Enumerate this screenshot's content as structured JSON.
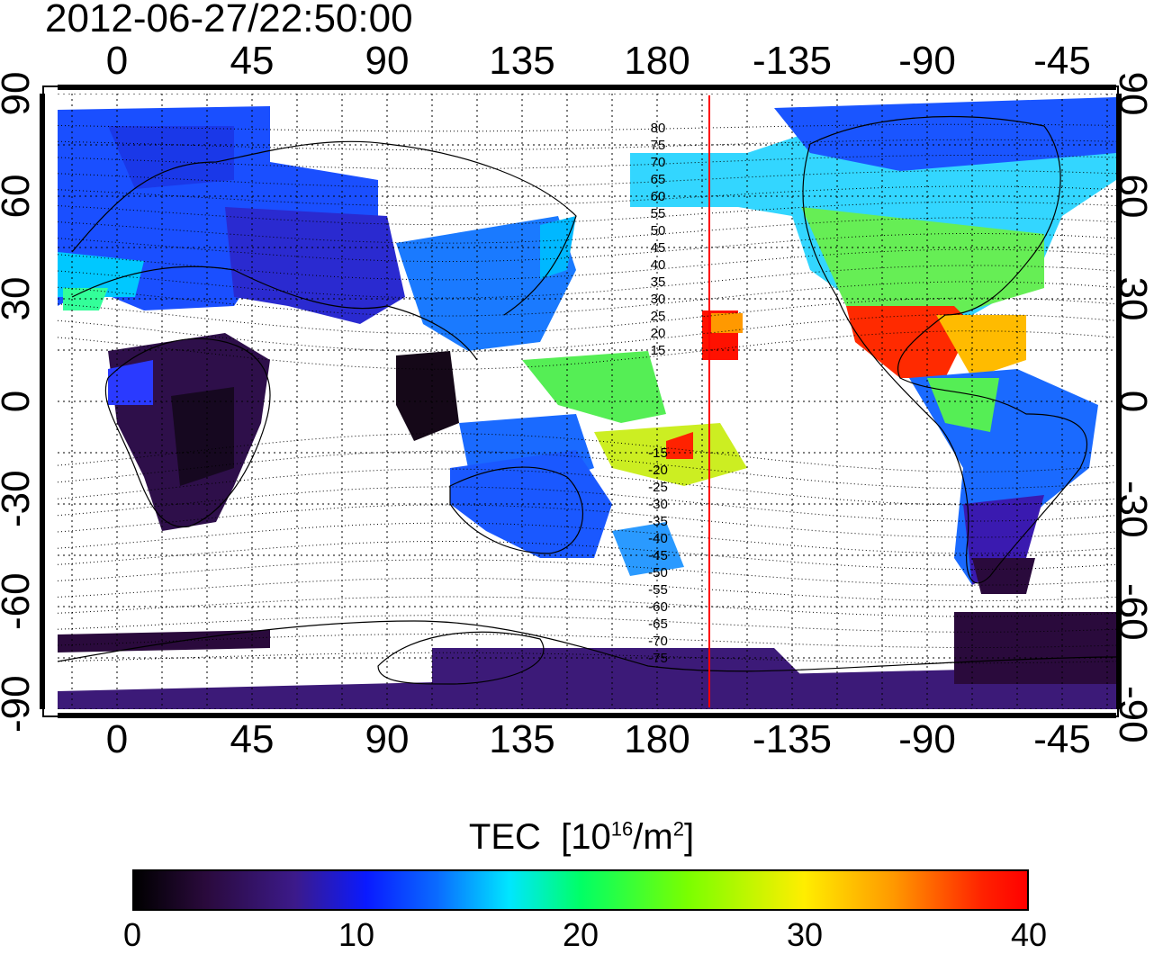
{
  "timestamp": "2012-06-27/22:50:00",
  "lon_ticks": [
    "0",
    "45",
    "90",
    "135",
    "180",
    "-135",
    "-90",
    "-45"
  ],
  "lat_ticks": [
    "90",
    "60",
    "30",
    "0",
    "-30",
    "-60",
    "-90"
  ],
  "contour_labels": [
    "80",
    "75",
    "70",
    "65",
    "60",
    "55",
    "50",
    "45",
    "40",
    "35",
    "30",
    "25",
    "20",
    "15",
    "-15",
    "-20",
    "-25",
    "-30",
    "-35",
    "-40",
    "-45",
    "-50",
    "-55",
    "-60",
    "-65",
    "-70",
    "-75"
  ],
  "colorbar": {
    "title": "TEC",
    "unit_base": "[10",
    "unit_exp": "16",
    "unit_mid": "/m",
    "unit_exp2": "2",
    "unit_end": "]",
    "ticks": [
      "0",
      "10",
      "20",
      "30",
      "40"
    ],
    "range": [
      0,
      40
    ]
  },
  "colors": {
    "terminator": "#ff0000",
    "frame": "#000000"
  }
}
